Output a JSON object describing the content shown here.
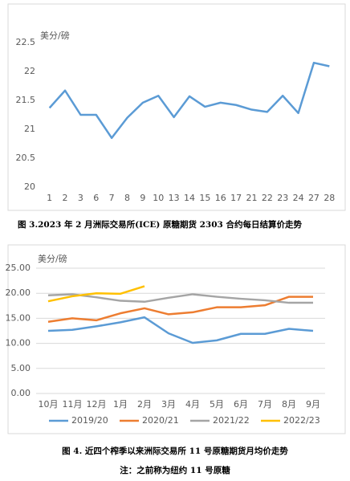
{
  "chart_data": [
    {
      "type": "line",
      "y_label": "美分/磅",
      "categories": [
        "1",
        "2",
        "3",
        "6",
        "7",
        "8",
        "9",
        "10",
        "13",
        "14",
        "15",
        "16",
        "17",
        "21",
        "22",
        "23",
        "24",
        "27",
        "28"
      ],
      "values": [
        21.37,
        21.67,
        21.25,
        21.25,
        20.85,
        21.2,
        21.46,
        21.58,
        21.21,
        21.57,
        21.39,
        21.46,
        21.42,
        21.34,
        21.3,
        21.58,
        21.28,
        22.15,
        22.09
      ],
      "color": "#5b9bd5",
      "ylim": [
        20,
        22.5
      ],
      "yticks": [
        20,
        20.5,
        21,
        21.5,
        22,
        22.5
      ],
      "grid": false,
      "caption": "图 3.2023 年 2 月洲际交易所(ICE) 原糖期货 2303 合约每日结算价走势"
    },
    {
      "type": "line",
      "y_label": "美分/磅",
      "categories": [
        "10月",
        "11月",
        "12月",
        "1月",
        "2月",
        "3月",
        "4月",
        "5月",
        "6月",
        "7月",
        "8月",
        "9月"
      ],
      "series": [
        {
          "name": "2019/20",
          "color": "#5b9bd5",
          "values": [
            12.5,
            12.7,
            13.4,
            14.2,
            15.2,
            12.0,
            10.1,
            10.6,
            11.9,
            11.9,
            12.9,
            12.5
          ]
        },
        {
          "name": "2020/21",
          "color": "#ed7d31",
          "values": [
            14.3,
            15.0,
            14.6,
            16.0,
            17.0,
            15.8,
            16.2,
            17.2,
            17.2,
            17.6,
            19.3,
            19.3
          ]
        },
        {
          "name": "2021/22",
          "color": "#a5a5a5",
          "values": [
            19.6,
            19.8,
            19.2,
            18.5,
            18.3,
            19.1,
            19.8,
            19.3,
            18.9,
            18.6,
            18.1,
            18.1
          ]
        },
        {
          "name": "2022/23",
          "color": "#ffc000",
          "values": [
            18.4,
            19.4,
            20.0,
            19.9,
            21.4,
            null,
            null,
            null,
            null,
            null,
            null,
            null
          ]
        }
      ],
      "ylim": [
        0,
        25
      ],
      "yticks": [
        {
          "value": 0,
          "label": "0.00"
        },
        {
          "value": 5,
          "label": "5.00"
        },
        {
          "value": 10,
          "label": "10.00"
        },
        {
          "value": 15,
          "label": "15.00"
        },
        {
          "value": 20,
          "label": "20.00"
        },
        {
          "value": 25,
          "label": "25.00"
        }
      ],
      "grid": true,
      "legend": "bottom",
      "caption": "图 4. 近四个榨季以来洲际交易所 11 号原糖期货月均价走势",
      "note": "注：之前称为纽约 11 号原糖"
    }
  ]
}
